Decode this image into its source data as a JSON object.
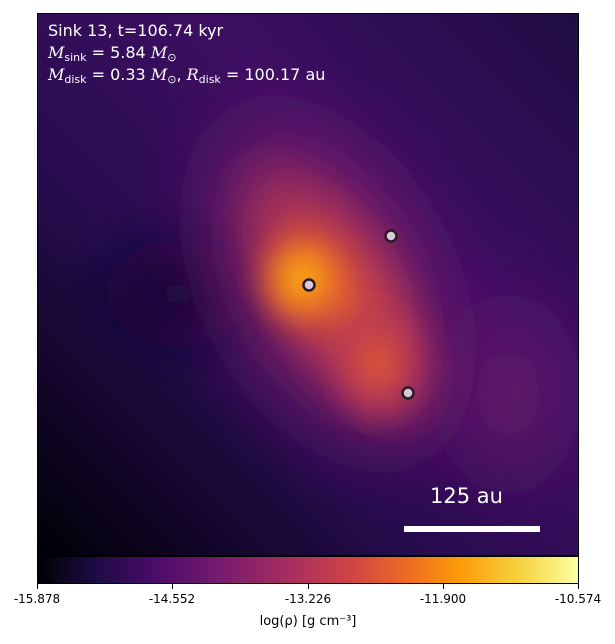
{
  "info": {
    "line1": "Sink 13, t=106.74 kyr",
    "m_sink_value": "5.84",
    "m_disk_value": "0.33",
    "r_disk_value": "100.17",
    "mass_unit": "M",
    "length_unit": "au"
  },
  "scale_bar": {
    "label": "125 au"
  },
  "colorbar": {
    "ticks": [
      "-15.878",
      "-14.552",
      "-13.226",
      "-11.900",
      "-10.574"
    ],
    "label": "log(ρ) [g cm⁻³]"
  },
  "colors": {
    "colormap": "inferno",
    "sink_marker": "#d8c8d8"
  }
}
